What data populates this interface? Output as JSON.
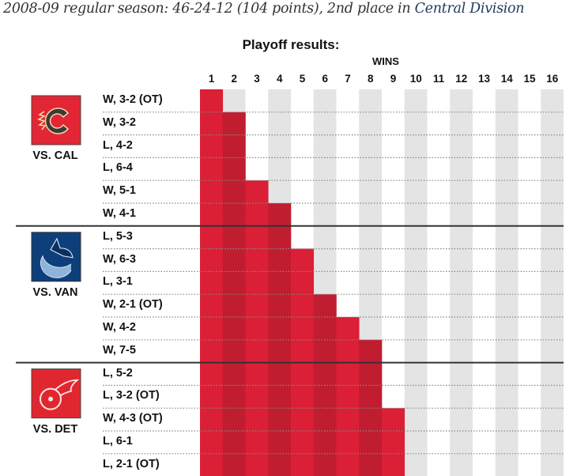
{
  "header": {
    "subtitle_prefix": "2008-09 regular season: 46-24-12 (104 points), 2nd place in ",
    "division_link": "Central Division"
  },
  "colors": {
    "win_odd": "#db1f36",
    "win_even": "#c11d31",
    "stripe": "#e4e4e4",
    "link": "#1f3a5f",
    "separator": "#333333",
    "dotted": "#888888"
  },
  "chart_data": {
    "type": "bar",
    "title": "Playoff results:",
    "xlabel": "WINS",
    "x_ticks": [
      "1",
      "2",
      "3",
      "4",
      "5",
      "6",
      "7",
      "8",
      "9",
      "10",
      "11",
      "12",
      "13",
      "14",
      "15",
      "16"
    ],
    "xlim": [
      0,
      16
    ],
    "series_description": "Cumulative playoff wins after each game",
    "series": [
      {
        "opponent": "VS. CAL",
        "logo": "calgary-flames-logo",
        "logo_color": "#e32636",
        "games": [
          {
            "result": "W, 3-2 (OT)",
            "cumulative_wins": 1
          },
          {
            "result": "W, 3-2",
            "cumulative_wins": 2
          },
          {
            "result": "L, 4-2",
            "cumulative_wins": 2
          },
          {
            "result": "L, 6-4",
            "cumulative_wins": 2
          },
          {
            "result": "W, 5-1",
            "cumulative_wins": 3
          },
          {
            "result": "W, 4-1",
            "cumulative_wins": 4
          }
        ]
      },
      {
        "opponent": "VS. VAN",
        "logo": "vancouver-canucks-logo",
        "logo_color": "#0d3f7a",
        "games": [
          {
            "result": "L, 5-3",
            "cumulative_wins": 4
          },
          {
            "result": "W, 6-3",
            "cumulative_wins": 5
          },
          {
            "result": "L, 3-1",
            "cumulative_wins": 5
          },
          {
            "result": "W, 2-1 (OT)",
            "cumulative_wins": 6
          },
          {
            "result": "W, 4-2",
            "cumulative_wins": 7
          },
          {
            "result": "W, 7-5",
            "cumulative_wins": 8
          }
        ]
      },
      {
        "opponent": "VS. DET",
        "logo": "detroit-red-wings-logo",
        "logo_color": "#e0272f",
        "games": [
          {
            "result": "L, 5-2",
            "cumulative_wins": 8
          },
          {
            "result": "L, 3-2 (OT)",
            "cumulative_wins": 8
          },
          {
            "result": "W, 4-3 (OT)",
            "cumulative_wins": 9
          },
          {
            "result": "L, 6-1",
            "cumulative_wins": 9
          },
          {
            "result": "L, 2-1 (OT)",
            "cumulative_wins": 9
          }
        ]
      }
    ]
  }
}
